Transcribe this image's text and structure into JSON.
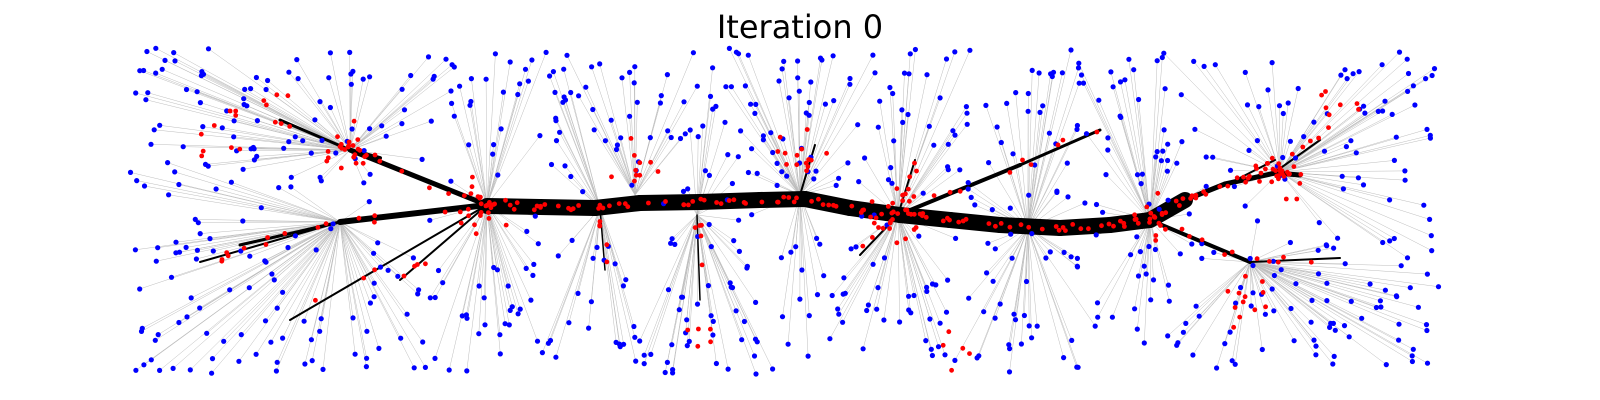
{
  "figure": {
    "title": "Iteration 0"
  },
  "colors": {
    "background": "#ffffff",
    "terminal_node": "#0000ff",
    "steiner_node": "#ff0000",
    "edge": "#000000",
    "faint_edge": "#bdbdbd"
  }
}
